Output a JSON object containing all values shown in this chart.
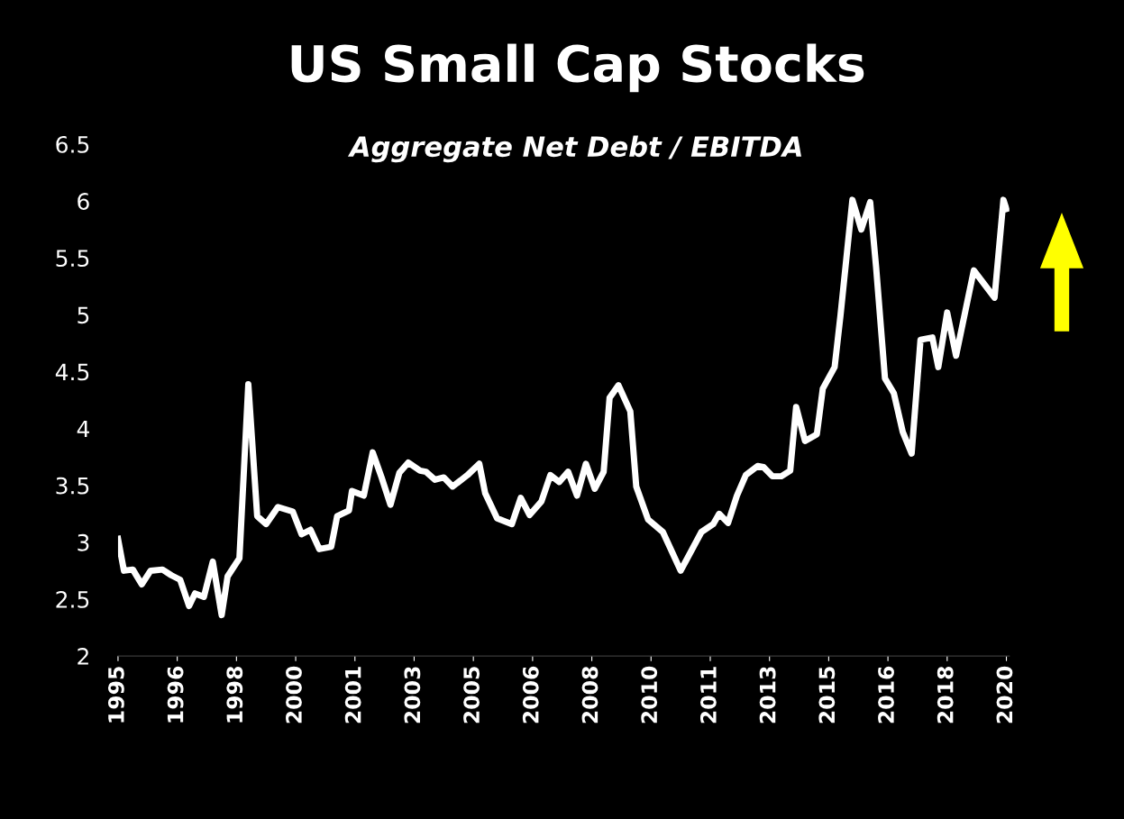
{
  "chart_data": {
    "type": "line",
    "title": "US Small Cap Stocks",
    "subtitle": "Aggregate Net Debt / EBITDA",
    "x": [
      "1995-01",
      "1995-03",
      "1995-06",
      "1995-09",
      "1995-12",
      "1996-04",
      "1996-07",
      "1996-10",
      "1997-01",
      "1997-03",
      "1997-06",
      "1997-09",
      "1997-12",
      "1998-02",
      "1998-06",
      "1998-09",
      "1998-12",
      "1999-03",
      "1999-07",
      "1999-12",
      "2000-03",
      "2000-06",
      "2000-09",
      "2001-01",
      "2001-03",
      "2001-07",
      "2001-08",
      "2001-12",
      "2002-03",
      "2002-06",
      "2002-09",
      "2002-12",
      "2003-03",
      "2003-07",
      "2003-09",
      "2003-12",
      "2004-03",
      "2004-06",
      "2004-11",
      "2005-03",
      "2005-05",
      "2005-09",
      "2006-02",
      "2006-05",
      "2006-08",
      "2006-12",
      "2007-03",
      "2007-06",
      "2007-09",
      "2007-12",
      "2008-03",
      "2008-06",
      "2008-09",
      "2008-11",
      "2009-02",
      "2009-06",
      "2009-08",
      "2009-12",
      "2010-05",
      "2010-11",
      "2011-06",
      "2011-10",
      "2011-12",
      "2012-03",
      "2012-06",
      "2012-09",
      "2013-01",
      "2013-03",
      "2013-06",
      "2013-09",
      "2013-12",
      "2014-02",
      "2014-05",
      "2014-09",
      "2014-11",
      "2015-03",
      "2015-05",
      "2015-09",
      "2015-12",
      "2016-03",
      "2016-05",
      "2016-08",
      "2016-11",
      "2017-02",
      "2017-05",
      "2017-08",
      "2017-12",
      "2018-02",
      "2018-05",
      "2018-08",
      "2019-02",
      "2019-09",
      "2019-12",
      "2020-01"
    ],
    "series": [
      {
        "color": "#ffffff",
        "values": [
          3.03,
          2.75,
          2.76,
          2.63,
          2.75,
          2.76,
          2.71,
          2.67,
          2.44,
          2.55,
          2.52,
          2.83,
          2.36,
          2.7,
          2.86,
          4.39,
          3.23,
          3.16,
          3.31,
          3.27,
          3.07,
          3.11,
          2.94,
          2.96,
          3.23,
          3.28,
          3.45,
          3.41,
          3.79,
          3.57,
          3.33,
          3.61,
          3.7,
          3.63,
          3.62,
          3.55,
          3.57,
          3.49,
          3.59,
          3.69,
          3.43,
          3.21,
          3.16,
          3.39,
          3.24,
          3.36,
          3.59,
          3.53,
          3.62,
          3.41,
          3.69,
          3.47,
          3.62,
          4.27,
          4.38,
          4.15,
          3.49,
          3.2,
          3.09,
          2.75,
          3.09,
          3.16,
          3.25,
          3.17,
          3.41,
          3.59,
          3.67,
          3.66,
          3.58,
          3.58,
          3.63,
          4.19,
          3.89,
          3.95,
          4.35,
          4.54,
          5.0,
          6.01,
          5.75,
          5.99,
          5.42,
          4.44,
          4.31,
          3.97,
          3.78,
          4.78,
          4.8,
          4.54,
          5.02,
          4.64,
          5.39,
          5.15,
          6.01,
          5.93
        ]
      }
    ],
    "xlim": [
      "1995-01",
      "2020-02"
    ],
    "xticks": [
      {
        "value": "1995-01",
        "label": "1995"
      },
      {
        "value": "1996-09",
        "label": "1996"
      },
      {
        "value": "1998-05",
        "label": "1998"
      },
      {
        "value": "2000-01",
        "label": "2000"
      },
      {
        "value": "2001-09",
        "label": "2001"
      },
      {
        "value": "2003-05",
        "label": "2003"
      },
      {
        "value": "2005-01",
        "label": "2005"
      },
      {
        "value": "2006-09",
        "label": "2006"
      },
      {
        "value": "2008-05",
        "label": "2008"
      },
      {
        "value": "2010-01",
        "label": "2010"
      },
      {
        "value": "2011-09",
        "label": "2011"
      },
      {
        "value": "2013-05",
        "label": "2013"
      },
      {
        "value": "2015-01",
        "label": "2015"
      },
      {
        "value": "2016-09",
        "label": "2016"
      },
      {
        "value": "2018-05",
        "label": "2018"
      },
      {
        "value": "2020-01",
        "label": "2020"
      }
    ],
    "ylim": [
      2,
      6.5
    ],
    "yticks": [
      2,
      2.5,
      3,
      3.5,
      4,
      4.5,
      5,
      5.5,
      6,
      6.5
    ],
    "grid": false,
    "legend": false,
    "marker": "none",
    "line_style": "solid"
  }
}
